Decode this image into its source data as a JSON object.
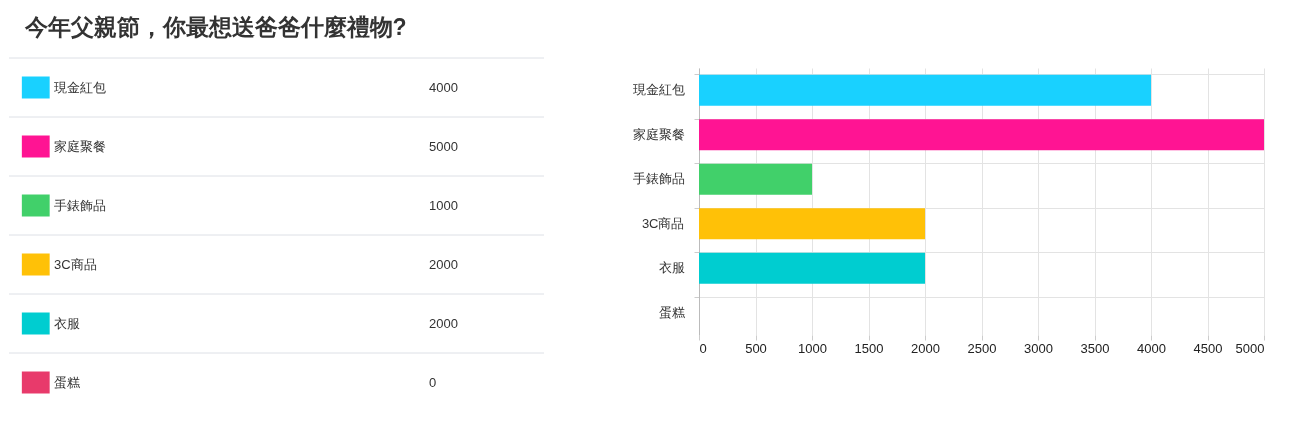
{
  "chart_data": [
    {
      "type": "other",
      "title": "今年父親節，你最想送爸爸什麼禮物?",
      "categories": [
        "現金紅包",
        "家庭聚餐",
        "手錶飾品",
        "3C商品",
        "衣服",
        "蛋糕"
      ],
      "values": [
        4000,
        5000,
        1000,
        2000,
        2000,
        0
      ],
      "colors": [
        "#19d1ff",
        "#ff1493",
        "#41d06a",
        "#ffc107",
        "#00cdd0",
        "#e83a6b"
      ],
      "data_labels": true
    },
    {
      "type": "bar",
      "orientation": "horizontal",
      "categories": [
        "現金紅包",
        "家庭聚餐",
        "手錶飾品",
        "3C商品",
        "衣服",
        "蛋糕"
      ],
      "values": [
        4000,
        5000,
        1000,
        2000,
        2000,
        0
      ],
      "colors": [
        "#19d1ff",
        "#ff1493",
        "#41d06a",
        "#ffc107",
        "#00cdd0",
        "#e83a6b"
      ],
      "xlim": [
        0,
        5000
      ],
      "xticks": [
        0,
        500,
        1000,
        1500,
        2000,
        2500,
        3000,
        3500,
        4000,
        4500,
        5000
      ],
      "grid": true
    }
  ]
}
